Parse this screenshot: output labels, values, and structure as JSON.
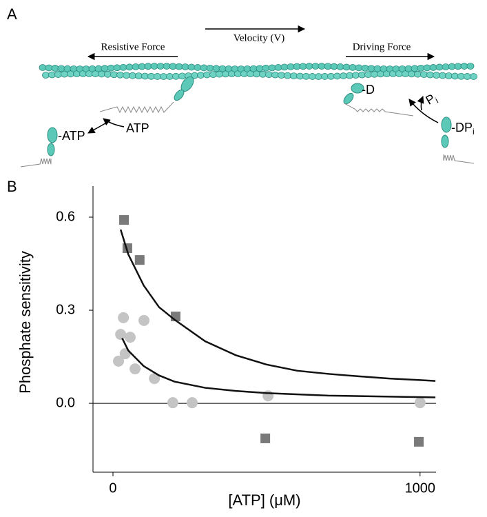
{
  "panel_a": {
    "label": "A",
    "resistive_force": "Resistive Force",
    "velocity": "Velocity (V)",
    "driving_force": "Driving Force",
    "atp_bound": "-ATP",
    "atp_free": "ATP",
    "adp_bound": "-D",
    "pi_free": "P",
    "pi_free_sub": "i",
    "adp_pi_bound": "-DP",
    "adp_pi_bound_sub": "i"
  },
  "chart_data": {
    "type": "scatter",
    "panel_label": "B",
    "x_label": "[ATP] (μM)",
    "y_label": "Phosphate sensitivity",
    "xlim": [
      -65,
      1052
    ],
    "ylim": [
      -0.222,
      0.7
    ],
    "xticks": [
      0,
      1000
    ],
    "yticks": [
      {
        "value": 0,
        "label": "0.0"
      },
      0.3,
      0.6
    ],
    "zero_line": true,
    "series": [
      {
        "marker": "square",
        "color": "#7a7a7a",
        "x": [
          36,
          47,
          87,
          204,
          496,
          996
        ],
        "values": [
          0.591,
          0.5,
          0.462,
          0.28,
          -0.113,
          -0.124
        ]
      },
      {
        "marker": "circle",
        "color": "#c4c4c4",
        "x": [
          34,
          25,
          56,
          101,
          18,
          40,
          72,
          135,
          195,
          258,
          505,
          1000
        ],
        "values": [
          0.276,
          0.222,
          0.213,
          0.267,
          0.136,
          0.16,
          0.111,
          0.08,
          0.002,
          0.002,
          0.024,
          0.002
        ]
      },
      {
        "marker": "line",
        "color": "#111111",
        "x": [
          25,
          50,
          100,
          150,
          200,
          300,
          400,
          500,
          600,
          700,
          800,
          900,
          1000,
          1050
        ],
        "values": [
          0.56,
          0.48,
          0.38,
          0.31,
          0.27,
          0.2,
          0.155,
          0.125,
          0.105,
          0.095,
          0.087,
          0.08,
          0.075,
          0.072
        ]
      },
      {
        "marker": "line",
        "color": "#111111",
        "x": [
          30,
          50,
          100,
          150,
          200,
          300,
          400,
          500,
          700,
          1000,
          1050
        ],
        "values": [
          0.21,
          0.17,
          0.12,
          0.09,
          0.07,
          0.05,
          0.04,
          0.033,
          0.025,
          0.02,
          0.019
        ]
      }
    ]
  }
}
